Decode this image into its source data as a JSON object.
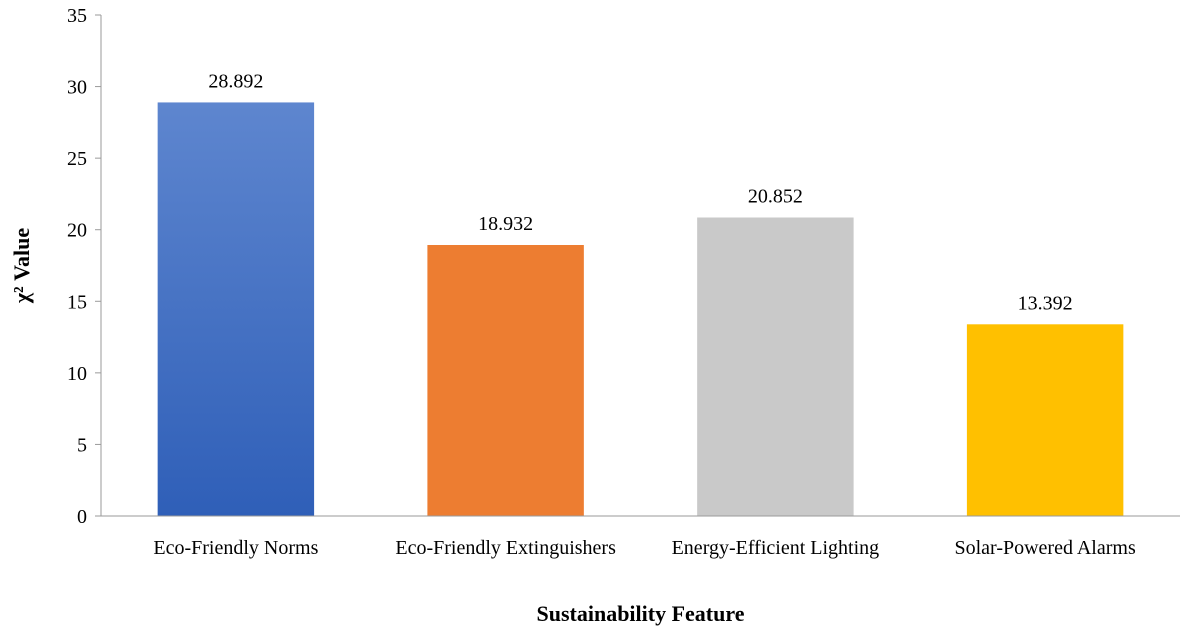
{
  "chart_data": {
    "type": "bar",
    "title": "",
    "xlabel": "Sustainability Feature",
    "ylabel": "χ² Value",
    "ylim": [
      0,
      35
    ],
    "yticks": [
      0,
      5,
      10,
      15,
      20,
      25,
      30,
      35
    ],
    "grid": false,
    "categories": [
      "Eco-Friendly Norms",
      "Eco-Friendly Extinguishers",
      "Energy-Efficient Lighting",
      "Solar-Powered Alarms"
    ],
    "values": [
      28.892,
      18.932,
      20.852,
      13.392
    ],
    "data_labels": [
      "28.892",
      "18.932",
      "20.852",
      "13.392"
    ],
    "colors": [
      "#4472C4",
      "#ED7D31",
      "#C9C9C9",
      "#FFC000"
    ]
  }
}
